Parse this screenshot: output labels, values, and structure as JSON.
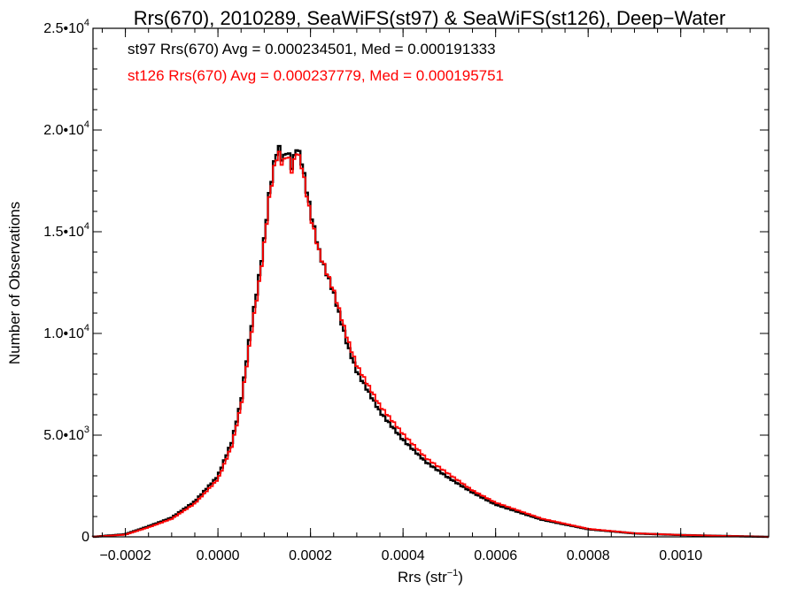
{
  "chart_data": {
    "type": "line",
    "style": "histogram-step",
    "title": "Rrs(670), 2010289, SeaWiFS(st97) & SeaWiFS(st126), Deep−Water",
    "xlabel": "Rrs (str",
    "xlabel_sup": "−1",
    "xlabel_close": ")",
    "ylabel": "Number of Observations",
    "xlim": [
      -0.00027,
      0.00119
    ],
    "ylim": [
      0,
      25000
    ],
    "grid": false,
    "x_ticks": [
      {
        "value": -0.0002,
        "label": "−0.0002"
      },
      {
        "value": 0.0,
        "label": "0.0000"
      },
      {
        "value": 0.0002,
        "label": "0.0002"
      },
      {
        "value": 0.0004,
        "label": "0.0004"
      },
      {
        "value": 0.0006,
        "label": "0.0006"
      },
      {
        "value": 0.0008,
        "label": "0.0008"
      },
      {
        "value": 0.001,
        "label": "0.0010"
      }
    ],
    "y_ticks": [
      {
        "value": 0,
        "base": "0",
        "exp": ""
      },
      {
        "value": 5000,
        "base": "5.0•10",
        "exp": "3"
      },
      {
        "value": 10000,
        "base": "1.0•10",
        "exp": "4"
      },
      {
        "value": 15000,
        "base": "1.5•10",
        "exp": "4"
      },
      {
        "value": 20000,
        "base": "2.0•10",
        "exp": "4"
      },
      {
        "value": 25000,
        "base": "2.5•10",
        "exp": "4"
      }
    ],
    "annotations": [
      {
        "text": "st97 Rrs(670) Avg = 0.000234501, Med = 0.000191333",
        "color": "#000000"
      },
      {
        "text": "st126 Rrs(670) Avg = 0.000237779, Med = 0.000195751",
        "color": "#ff0000"
      }
    ],
    "series": [
      {
        "color": "#000000",
        "x": [
          -0.00027,
          -0.0002,
          -0.00015,
          -0.0001,
          -5e-05,
          0.0,
          3e-05,
          5e-05,
          7e-05,
          9e-05,
          0.0001,
          0.00011,
          0.00012,
          0.00013,
          0.00014,
          0.00015,
          0.00016,
          0.00017,
          0.00018,
          0.0002,
          0.00022,
          0.00025,
          0.00028,
          0.0003,
          0.00035,
          0.0004,
          0.00045,
          0.0005,
          0.00055,
          0.0006,
          0.0007,
          0.0008,
          0.0009,
          0.001,
          0.00119
        ],
        "y": [
          0,
          130,
          520,
          950,
          1750,
          3000,
          4700,
          6700,
          10100,
          13000,
          14700,
          16800,
          18300,
          19400,
          18600,
          19200,
          18300,
          19300,
          18700,
          16100,
          14000,
          12100,
          9500,
          8200,
          6200,
          4800,
          3700,
          2900,
          2200,
          1600,
          850,
          380,
          170,
          90,
          0
        ]
      },
      {
        "color": "#ff0000",
        "x": [
          -0.00027,
          -0.0002,
          -0.00015,
          -0.0001,
          -5e-05,
          0.0,
          3e-05,
          5e-05,
          7e-05,
          9e-05,
          0.0001,
          0.00011,
          0.00012,
          0.00013,
          0.00014,
          0.00015,
          0.00016,
          0.00017,
          0.00018,
          0.0002,
          0.00022,
          0.00025,
          0.00028,
          0.0003,
          0.00035,
          0.0004,
          0.00045,
          0.0005,
          0.00055,
          0.0006,
          0.0007,
          0.0008,
          0.0009,
          0.001,
          0.00119
        ],
        "y": [
          0,
          110,
          470,
          890,
          1650,
          2850,
          4500,
          6500,
          9800,
          12700,
          14500,
          16600,
          18100,
          19100,
          18400,
          19000,
          18100,
          19100,
          18500,
          15900,
          14000,
          12200,
          9800,
          8500,
          6500,
          5100,
          3900,
          3100,
          2300,
          1700,
          900,
          400,
          180,
          95,
          0
        ]
      }
    ]
  }
}
